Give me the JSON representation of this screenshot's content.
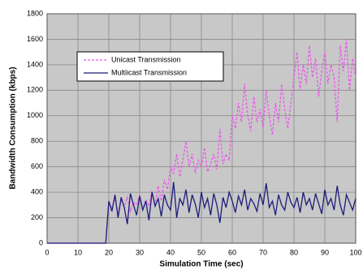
{
  "chart_data": {
    "type": "line",
    "xlabel": "Simulation Time (sec)",
    "ylabel": "Bandwidth Consumption (kbps)",
    "x": [
      0,
      1,
      2,
      3,
      4,
      5,
      6,
      7,
      8,
      9,
      10,
      11,
      12,
      13,
      14,
      15,
      16,
      17,
      18,
      19,
      20,
      21,
      22,
      23,
      24,
      25,
      26,
      27,
      28,
      29,
      30,
      31,
      32,
      33,
      34,
      35,
      36,
      37,
      38,
      39,
      40,
      41,
      42,
      43,
      44,
      45,
      46,
      47,
      48,
      49,
      50,
      51,
      52,
      53,
      54,
      55,
      56,
      57,
      58,
      59,
      60,
      61,
      62,
      63,
      64,
      65,
      66,
      67,
      68,
      69,
      70,
      71,
      72,
      73,
      74,
      75,
      76,
      77,
      78,
      79,
      80,
      81,
      82,
      83,
      84,
      85,
      86,
      87,
      88,
      89,
      90,
      91,
      92,
      93,
      94,
      95,
      96,
      97,
      98,
      99,
      100
    ],
    "series": [
      {
        "name": "Unicast Transmission",
        "color": "#ee55ee",
        "dashed": true,
        "values": [
          0,
          0,
          0,
          0,
          0,
          0,
          0,
          0,
          0,
          0,
          0,
          0,
          0,
          0,
          0,
          0,
          0,
          0,
          0,
          0,
          310,
          280,
          350,
          240,
          330,
          290,
          360,
          250,
          320,
          300,
          380,
          260,
          340,
          290,
          410,
          300,
          450,
          330,
          500,
          420,
          600,
          550,
          700,
          520,
          650,
          800,
          600,
          700,
          550,
          650,
          600,
          750,
          560,
          620,
          700,
          580,
          900,
          620,
          700,
          650,
          1000,
          900,
          1100,
          950,
          1250,
          1000,
          880,
          1150,
          950,
          1050,
          900,
          1200,
          1000,
          850,
          1100,
          950,
          1250,
          1050,
          900,
          1100,
          1300,
          1500,
          1200,
          1400,
          1250,
          1550,
          1300,
          1450,
          1150,
          1350,
          1500,
          1250,
          1400,
          1300,
          950,
          1550,
          1350,
          1600,
          1200,
          1450,
          1300
        ]
      },
      {
        "name": "Multiicast Transmission",
        "color": "#1c1c7a",
        "dashed": false,
        "values": [
          0,
          0,
          0,
          0,
          0,
          0,
          0,
          0,
          0,
          0,
          0,
          0,
          0,
          0,
          0,
          0,
          0,
          0,
          0,
          0,
          330,
          250,
          380,
          200,
          360,
          280,
          150,
          390,
          300,
          220,
          370,
          260,
          330,
          180,
          400,
          290,
          350,
          210,
          380,
          300,
          260,
          480,
          200,
          350,
          300,
          420,
          240,
          380,
          310,
          200,
          400,
          280,
          350,
          220,
          390,
          300,
          160,
          360,
          280,
          400,
          330,
          240,
          370,
          300,
          420,
          260,
          350,
          310,
          250,
          390,
          300,
          470,
          280,
          330,
          220,
          380,
          300,
          260,
          400,
          320,
          280,
          360,
          240,
          400,
          300,
          350,
          260,
          390,
          310,
          230,
          420,
          300,
          350,
          260,
          450,
          300,
          220,
          380,
          320,
          260,
          350
        ]
      }
    ],
    "xlim": [
      0,
      100
    ],
    "xticks": [
      0,
      10,
      20,
      30,
      40,
      50,
      60,
      70,
      80,
      90,
      100
    ],
    "ylim": [
      0,
      1800
    ],
    "yticks": [
      0,
      200,
      400,
      600,
      800,
      1000,
      1200,
      1400,
      1600,
      1800
    ],
    "grid": true,
    "legend": "upper left"
  }
}
